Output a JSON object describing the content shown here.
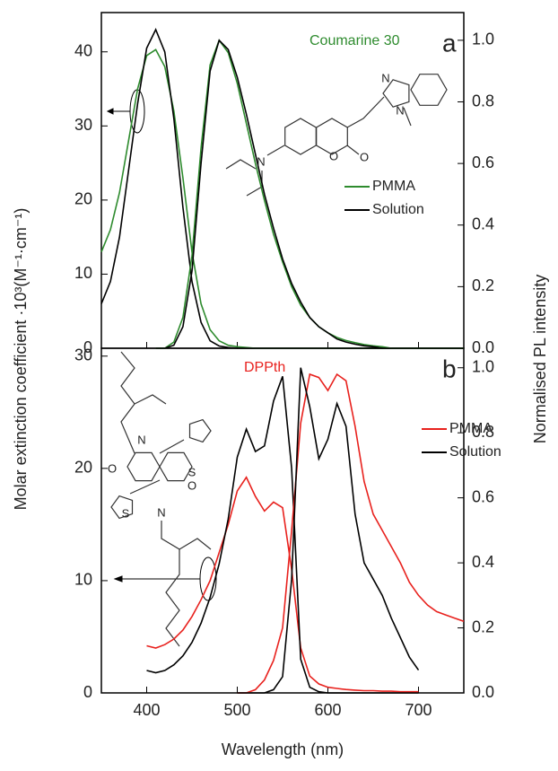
{
  "x_label": "Wavelength (nm)",
  "y_label": "Molar extinction coefficient ·10³(M⁻¹·cm⁻¹)",
  "y2_label": "Normalised PL intensity",
  "chart_data": [
    {
      "type": "line",
      "annotation": "Coumarine 30",
      "panel_label": "a",
      "structure_atoms": [
        "N",
        "O",
        "O",
        "N",
        "N"
      ],
      "x": [
        350,
        360,
        370,
        380,
        390,
        400,
        410,
        420,
        430,
        440,
        450,
        460,
        470,
        480,
        490,
        500,
        510,
        520,
        530,
        540,
        550,
        560,
        570,
        580,
        590,
        600,
        610,
        620,
        630,
        640,
        650,
        660,
        670,
        680,
        690,
        700,
        710,
        720,
        730,
        740,
        750
      ],
      "xlim": [
        350,
        750
      ],
      "ylim": [
        0,
        45.3
      ],
      "yticks": [
        0,
        10,
        20,
        30,
        40
      ],
      "y2lim": [
        0,
        1.09
      ],
      "y2ticks": [
        {
          "value": 0,
          "label": "0.0"
        },
        {
          "value": 0.2,
          "label": "0.2"
        },
        {
          "value": 0.4,
          "label": "0.4"
        },
        {
          "value": 0.6,
          "label": "0.6"
        },
        {
          "value": 0.8,
          "label": "0.8"
        },
        {
          "value": 1,
          "label": "1.0"
        }
      ],
      "series": [
        {
          "name": "PMMA",
          "color": "#2e8b2e",
          "values": [
            13,
            16,
            21,
            28,
            35,
            39.5,
            40.3,
            38,
            32,
            23,
            13,
            6,
            2.5,
            1,
            0.4,
            0.2,
            0.1,
            0,
            0,
            0,
            0,
            0,
            0,
            0,
            0,
            0,
            0,
            0,
            0,
            0,
            0,
            0,
            0,
            0,
            0,
            0,
            0,
            0,
            0,
            0,
            0
          ]
        },
        {
          "name": "Solution",
          "color": "#000000",
          "values": [
            6,
            9,
            15,
            24,
            33,
            40.5,
            43,
            40,
            31,
            19,
            9,
            3.5,
            1,
            0.3,
            0.1,
            0,
            0,
            0,
            0,
            0,
            0,
            0,
            0,
            0,
            0,
            0,
            0,
            0,
            0,
            0,
            0,
            0,
            0,
            0,
            0,
            0,
            0,
            0,
            0,
            0,
            0
          ]
        },
        {
          "color": "#2e8b2e",
          "axis": "y2",
          "values": [
            null,
            null,
            null,
            null,
            null,
            null,
            0,
            0,
            0.02,
            0.1,
            0.3,
            0.65,
            0.92,
            1.0,
            0.96,
            0.86,
            0.73,
            0.6,
            0.48,
            0.37,
            0.28,
            0.2,
            0.14,
            0.1,
            0.07,
            0.05,
            0.035,
            0.025,
            0.018,
            0.012,
            0.008,
            0.005,
            0,
            0,
            0,
            0,
            0,
            0,
            0,
            0,
            0
          ]
        },
        {
          "color": "#000000",
          "axis": "y2",
          "values": [
            null,
            null,
            null,
            null,
            null,
            null,
            0,
            0,
            0.01,
            0.07,
            0.25,
            0.6,
            0.9,
            1.0,
            0.97,
            0.88,
            0.76,
            0.63,
            0.5,
            0.39,
            0.29,
            0.21,
            0.15,
            0.1,
            0.07,
            0.05,
            0.03,
            0.02,
            0.013,
            0.008,
            0.005,
            0,
            0,
            0,
            0,
            0,
            0,
            0,
            0,
            0,
            0
          ]
        }
      ]
    },
    {
      "type": "line",
      "annotation": "DPPth",
      "panel_label": "b",
      "structure_atoms": [
        "O",
        "N",
        "S",
        "S",
        "N",
        "O"
      ],
      "x": [
        350,
        360,
        370,
        380,
        390,
        400,
        410,
        420,
        430,
        440,
        450,
        460,
        470,
        480,
        490,
        500,
        510,
        520,
        530,
        540,
        550,
        560,
        570,
        580,
        590,
        600,
        610,
        620,
        630,
        640,
        650,
        660,
        670,
        680,
        690,
        700,
        710,
        720,
        730,
        740,
        750
      ],
      "xlim": [
        350,
        750
      ],
      "xticks": [
        400,
        500,
        600,
        700
      ],
      "ylim": [
        0,
        30.7
      ],
      "yticks": [
        0,
        10,
        20,
        30
      ],
      "y2lim": [
        0,
        1.06
      ],
      "y2ticks": [
        {
          "value": 0,
          "label": "0.0"
        },
        {
          "value": 0.2,
          "label": "0.2"
        },
        {
          "value": 0.4,
          "label": "0.4"
        },
        {
          "value": 0.6,
          "label": "0.6"
        },
        {
          "value": 0.8,
          "label": "0.8"
        },
        {
          "value": 1,
          "label": "1.0"
        }
      ],
      "series": [
        {
          "name": "PMMA",
          "color": "#e8211d",
          "values": [
            null,
            null,
            null,
            null,
            null,
            4.2,
            4.0,
            4.3,
            4.8,
            5.6,
            6.8,
            8.3,
            10,
            12.5,
            15,
            18,
            19.2,
            17.5,
            16.2,
            17,
            16.5,
            11,
            4,
            1.5,
            0.8,
            0.5,
            0.4,
            0.3,
            0.25,
            0.2,
            0.2,
            0.15,
            0.15,
            0.1,
            0.1,
            0.1,
            null,
            null,
            null,
            null,
            null
          ]
        },
        {
          "name": "Solution",
          "color": "#000000",
          "values": [
            null,
            null,
            null,
            null,
            null,
            2,
            1.8,
            2,
            2.5,
            3.3,
            4.5,
            6.2,
            8.5,
            11.5,
            15.5,
            21,
            23.5,
            21.5,
            22,
            26,
            28.2,
            20,
            3,
            0.5,
            0.1,
            0,
            0,
            0,
            0,
            0,
            0,
            0,
            0,
            0,
            0,
            0,
            null,
            null,
            null,
            null,
            null
          ]
        },
        {
          "color": "#e8211d",
          "axis": "y2",
          "values": [
            null,
            null,
            null,
            null,
            null,
            null,
            null,
            null,
            null,
            null,
            null,
            null,
            null,
            null,
            null,
            0,
            0,
            0.01,
            0.04,
            0.1,
            0.2,
            0.5,
            0.83,
            0.98,
            0.97,
            0.93,
            0.98,
            0.96,
            0.82,
            0.65,
            0.55,
            0.5,
            0.45,
            0.4,
            0.34,
            0.3,
            0.27,
            0.25,
            0.24,
            0.23,
            0.22
          ]
        },
        {
          "color": "#000000",
          "axis": "y2",
          "values": [
            null,
            null,
            null,
            null,
            null,
            null,
            null,
            null,
            null,
            null,
            null,
            null,
            null,
            null,
            null,
            0,
            0,
            0,
            0,
            0.01,
            0.05,
            0.35,
            1.0,
            0.88,
            0.72,
            0.78,
            0.89,
            0.82,
            0.55,
            0.4,
            0.35,
            0.3,
            0.23,
            0.17,
            0.11,
            0.07,
            null,
            null,
            null,
            null,
            null
          ]
        }
      ]
    }
  ]
}
